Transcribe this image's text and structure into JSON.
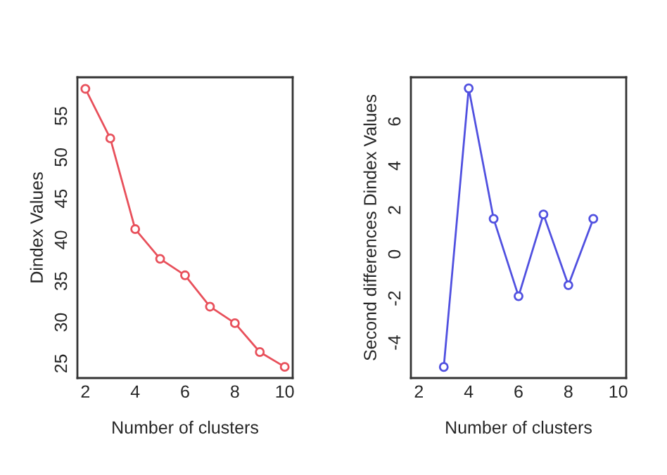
{
  "chart_data": [
    {
      "type": "line",
      "xlabel": "Number of clusters",
      "ylabel": "Dindex Values",
      "x": [
        2,
        3,
        4,
        5,
        6,
        7,
        8,
        9,
        10
      ],
      "series": [
        {
          "color": "#e8505b",
          "values": [
            58.3,
            52.3,
            41.3,
            37.7,
            35.7,
            31.9,
            29.9,
            26.4,
            24.6
          ]
        }
      ],
      "marker": "circle",
      "line_style": "solid",
      "grid": false,
      "legend": false,
      "xlim": [
        1.68,
        10.32
      ],
      "xticks": [
        2,
        4,
        6,
        8,
        10
      ],
      "ylim": [
        23.25,
        59.7
      ],
      "yticks": [
        25,
        30,
        35,
        40,
        45,
        50,
        55
      ]
    },
    {
      "type": "line",
      "xlabel": "Number of clusters",
      "ylabel": "Second differences Dindex Values",
      "x": [
        3,
        4,
        5,
        6,
        7,
        8,
        9
      ],
      "series": [
        {
          "color": "#5050e0",
          "values": [
            -5.1,
            7.5,
            1.6,
            -1.9,
            1.8,
            -1.4,
            1.6
          ]
        }
      ],
      "marker": "circle",
      "line_style": "solid",
      "grid": false,
      "legend": false,
      "xlim": [
        1.68,
        10.32
      ],
      "xticks": [
        2,
        4,
        6,
        8,
        10
      ],
      "ylim": [
        -5.6,
        8.0
      ],
      "yticks": [
        -4,
        -2,
        0,
        2,
        4,
        6
      ]
    }
  ]
}
